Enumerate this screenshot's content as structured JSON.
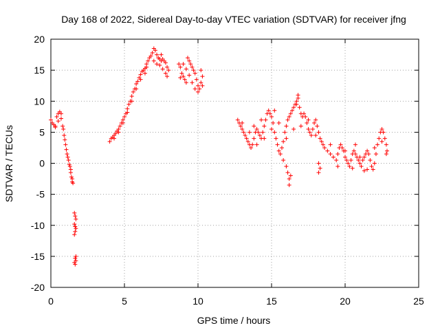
{
  "chart_data": {
    "type": "scatter",
    "title": "Day 168 of 2022, Sidereal Day-to-day VTEC variation (SDTVAR) for receiver jfng",
    "xlabel": "GPS time / hours",
    "ylabel": "SDTVAR / TECUs",
    "xlim": [
      0,
      25
    ],
    "ylim": [
      -20,
      20
    ],
    "x_ticks": [
      0,
      5,
      10,
      15,
      20,
      25
    ],
    "y_ticks": [
      -20,
      -15,
      -10,
      -5,
      0,
      5,
      10,
      15,
      20
    ],
    "x_tick_labels": [
      "0",
      "5",
      "10",
      "15",
      "20",
      "25"
    ],
    "y_tick_labels": [
      "-20",
      "-15",
      "-10",
      "-5",
      "0",
      "5",
      "10",
      "15",
      "20"
    ],
    "grid": true,
    "marker": "+",
    "marker_color": "#ff0000",
    "series": [
      {
        "name": "SDTVAR",
        "points": [
          [
            0.0,
            7.0
          ],
          [
            0.1,
            6.5
          ],
          [
            0.2,
            6.2
          ],
          [
            0.3,
            6.0
          ],
          [
            0.4,
            7.5
          ],
          [
            0.5,
            8.0
          ],
          [
            0.6,
            8.3
          ],
          [
            0.7,
            8.0
          ],
          [
            0.3,
            5.8
          ],
          [
            0.5,
            6.8
          ],
          [
            0.7,
            7.2
          ],
          [
            0.8,
            6.0
          ],
          [
            0.9,
            4.5
          ],
          [
            1.0,
            3.0
          ],
          [
            1.1,
            1.5
          ],
          [
            1.2,
            0.5
          ],
          [
            1.3,
            -0.5
          ],
          [
            1.35,
            -1.5
          ],
          [
            1.4,
            -2.2
          ],
          [
            1.45,
            -3.0
          ],
          [
            1.5,
            -3.2
          ],
          [
            0.85,
            5.5
          ],
          [
            0.95,
            3.8
          ],
          [
            1.05,
            2.2
          ],
          [
            1.15,
            1.0
          ],
          [
            1.25,
            -0.2
          ],
          [
            1.35,
            -1.0
          ],
          [
            1.45,
            -2.5
          ],
          [
            1.6,
            -8.0
          ],
          [
            1.65,
            -8.5
          ],
          [
            1.7,
            -9.0
          ],
          [
            1.6,
            -9.8
          ],
          [
            1.65,
            -10.2
          ],
          [
            1.7,
            -10.5
          ],
          [
            1.65,
            -11.0
          ],
          [
            1.6,
            -11.5
          ],
          [
            1.7,
            -15.0
          ],
          [
            1.65,
            -15.3
          ],
          [
            1.7,
            -15.7
          ],
          [
            1.6,
            -16.0
          ],
          [
            1.65,
            -16.3
          ],
          [
            4.0,
            3.5
          ],
          [
            4.1,
            4.0
          ],
          [
            4.2,
            4.2
          ],
          [
            4.3,
            4.5
          ],
          [
            4.4,
            4.8
          ],
          [
            4.5,
            5.2
          ],
          [
            4.6,
            5.5
          ],
          [
            4.7,
            6.0
          ],
          [
            4.8,
            6.5
          ],
          [
            4.9,
            7.0
          ],
          [
            5.0,
            7.5
          ],
          [
            5.1,
            8.0
          ],
          [
            5.2,
            8.8
          ],
          [
            5.3,
            9.5
          ],
          [
            5.4,
            10.0
          ],
          [
            5.5,
            10.8
          ],
          [
            5.6,
            11.5
          ],
          [
            5.7,
            12.0
          ],
          [
            5.8,
            12.8
          ],
          [
            5.9,
            13.2
          ],
          [
            6.0,
            13.8
          ],
          [
            6.1,
            14.3
          ],
          [
            6.2,
            14.8
          ],
          [
            6.3,
            15.0
          ],
          [
            6.4,
            15.3
          ],
          [
            6.5,
            15.5
          ],
          [
            4.3,
            4.0
          ],
          [
            4.6,
            5.0
          ],
          [
            4.9,
            6.5
          ],
          [
            5.2,
            8.2
          ],
          [
            5.5,
            10.0
          ],
          [
            5.8,
            12.0
          ],
          [
            6.1,
            13.5
          ],
          [
            6.4,
            14.5
          ],
          [
            6.5,
            16.0
          ],
          [
            6.6,
            16.5
          ],
          [
            6.7,
            17.0
          ],
          [
            6.8,
            17.3
          ],
          [
            6.9,
            17.8
          ],
          [
            7.0,
            18.5
          ],
          [
            7.1,
            18.2
          ],
          [
            7.2,
            17.5
          ],
          [
            7.3,
            17.0
          ],
          [
            7.4,
            16.8
          ],
          [
            7.5,
            16.5
          ],
          [
            7.6,
            16.8
          ],
          [
            7.7,
            16.5
          ],
          [
            7.8,
            16.2
          ],
          [
            7.9,
            15.5
          ],
          [
            8.0,
            15.0
          ],
          [
            7.0,
            16.5
          ],
          [
            7.2,
            16.0
          ],
          [
            7.4,
            15.8
          ],
          [
            7.6,
            15.2
          ],
          [
            7.8,
            14.5
          ],
          [
            7.9,
            14.0
          ],
          [
            7.5,
            17.5
          ],
          [
            8.7,
            16.0
          ],
          [
            8.8,
            15.5
          ],
          [
            8.9,
            14.5
          ],
          [
            9.0,
            14.0
          ],
          [
            9.1,
            13.5
          ],
          [
            9.2,
            13.0
          ],
          [
            9.3,
            17.0
          ],
          [
            9.4,
            16.5
          ],
          [
            9.5,
            16.0
          ],
          [
            9.6,
            15.5
          ],
          [
            9.7,
            15.0
          ],
          [
            9.8,
            14.5
          ],
          [
            9.9,
            13.5
          ],
          [
            10.0,
            12.5
          ],
          [
            10.1,
            12.0
          ],
          [
            10.2,
            13.0
          ],
          [
            10.3,
            14.0
          ],
          [
            8.8,
            13.8
          ],
          [
            9.0,
            16.0
          ],
          [
            9.2,
            15.2
          ],
          [
            9.4,
            14.2
          ],
          [
            9.6,
            13.0
          ],
          [
            9.8,
            12.0
          ],
          [
            10.0,
            11.5
          ],
          [
            10.2,
            15.0
          ],
          [
            10.3,
            12.5
          ],
          [
            12.7,
            7.0
          ],
          [
            12.8,
            6.5
          ],
          [
            12.9,
            6.0
          ],
          [
            13.0,
            5.5
          ],
          [
            13.1,
            5.0
          ],
          [
            13.2,
            4.5
          ],
          [
            13.3,
            4.0
          ],
          [
            13.4,
            3.5
          ],
          [
            13.5,
            3.0
          ],
          [
            13.6,
            2.5
          ],
          [
            13.7,
            3.0
          ],
          [
            13.8,
            4.0
          ],
          [
            13.9,
            5.0
          ],
          [
            14.0,
            5.5
          ],
          [
            14.1,
            5.0
          ],
          [
            14.2,
            4.5
          ],
          [
            14.3,
            4.0
          ],
          [
            14.4,
            5.0
          ],
          [
            14.5,
            6.0
          ],
          [
            14.6,
            7.0
          ],
          [
            14.7,
            8.0
          ],
          [
            14.8,
            8.5
          ],
          [
            14.9,
            8.0
          ],
          [
            15.0,
            7.5
          ],
          [
            15.1,
            6.5
          ],
          [
            15.2,
            5.0
          ],
          [
            15.3,
            4.0
          ],
          [
            15.4,
            3.0
          ],
          [
            15.5,
            2.0
          ],
          [
            15.6,
            1.5
          ],
          [
            15.7,
            2.5
          ],
          [
            15.8,
            3.5
          ],
          [
            15.9,
            5.0
          ],
          [
            16.0,
            6.0
          ],
          [
            16.1,
            7.0
          ],
          [
            16.2,
            7.5
          ],
          [
            16.3,
            8.0
          ],
          [
            16.4,
            8.5
          ],
          [
            16.5,
            9.0
          ],
          [
            16.6,
            9.5
          ],
          [
            16.7,
            10.0
          ],
          [
            16.8,
            10.5
          ],
          [
            16.9,
            9.0
          ],
          [
            17.0,
            8.0
          ],
          [
            17.1,
            7.5
          ],
          [
            17.2,
            8.0
          ],
          [
            17.3,
            7.5
          ],
          [
            17.4,
            6.5
          ],
          [
            17.5,
            5.5
          ],
          [
            17.6,
            5.0
          ],
          [
            17.7,
            4.5
          ],
          [
            17.8,
            5.5
          ],
          [
            17.9,
            6.5
          ],
          [
            18.0,
            7.0
          ],
          [
            18.1,
            6.0
          ],
          [
            18.2,
            5.0
          ],
          [
            18.3,
            4.0
          ],
          [
            18.4,
            3.5
          ],
          [
            18.5,
            3.0
          ],
          [
            13.0,
            6.5
          ],
          [
            13.5,
            5.0
          ],
          [
            14.0,
            3.0
          ],
          [
            14.5,
            4.0
          ],
          [
            15.0,
            5.5
          ],
          [
            15.5,
            6.5
          ],
          [
            16.0,
            4.0
          ],
          [
            16.5,
            5.5
          ],
          [
            17.0,
            6.0
          ],
          [
            17.5,
            7.0
          ],
          [
            18.0,
            4.5
          ],
          [
            15.8,
            0.5
          ],
          [
            16.0,
            -0.5
          ],
          [
            16.1,
            -1.5
          ],
          [
            16.2,
            -2.5
          ],
          [
            16.2,
            -3.5
          ],
          [
            16.3,
            -2.0
          ],
          [
            18.2,
            0.0
          ],
          [
            18.3,
            -0.8
          ],
          [
            18.2,
            -1.5
          ],
          [
            16.8,
            11.0
          ],
          [
            16.7,
            9.5
          ],
          [
            15.2,
            8.5
          ],
          [
            14.3,
            7.0
          ],
          [
            13.8,
            6.0
          ],
          [
            18.6,
            2.5
          ],
          [
            18.8,
            2.0
          ],
          [
            19.0,
            1.5
          ],
          [
            19.2,
            1.0
          ],
          [
            19.4,
            0.5
          ],
          [
            19.5,
            1.5
          ],
          [
            19.6,
            2.5
          ],
          [
            19.7,
            3.0
          ],
          [
            19.8,
            2.5
          ],
          [
            19.9,
            2.0
          ],
          [
            20.0,
            1.0
          ],
          [
            20.1,
            0.5
          ],
          [
            20.2,
            0.0
          ],
          [
            20.3,
            -0.5
          ],
          [
            20.4,
            0.5
          ],
          [
            20.5,
            1.5
          ],
          [
            20.6,
            2.0
          ],
          [
            20.7,
            1.5
          ],
          [
            20.8,
            1.0
          ],
          [
            20.9,
            0.5
          ],
          [
            21.0,
            0.0
          ],
          [
            21.1,
            -0.5
          ],
          [
            21.2,
            0.5
          ],
          [
            21.3,
            1.0
          ],
          [
            21.4,
            1.5
          ],
          [
            21.5,
            2.0
          ],
          [
            21.6,
            1.5
          ],
          [
            21.7,
            0.5
          ],
          [
            21.8,
            -0.5
          ],
          [
            21.9,
            -1.0
          ],
          [
            22.0,
            0.0
          ],
          [
            22.1,
            1.5
          ],
          [
            22.2,
            3.0
          ],
          [
            22.3,
            4.0
          ],
          [
            22.4,
            5.0
          ],
          [
            22.5,
            5.5
          ],
          [
            22.6,
            5.0
          ],
          [
            22.7,
            4.0
          ],
          [
            22.8,
            3.0
          ],
          [
            22.85,
            2.0
          ],
          [
            19.0,
            3.0
          ],
          [
            19.5,
            -0.5
          ],
          [
            20.0,
            2.0
          ],
          [
            20.5,
            -0.8
          ],
          [
            21.0,
            1.0
          ],
          [
            21.5,
            -1.0
          ],
          [
            22.0,
            2.5
          ],
          [
            22.5,
            3.5
          ],
          [
            22.8,
            1.5
          ],
          [
            20.7,
            3.0
          ],
          [
            21.3,
            -1.2
          ]
        ]
      }
    ]
  }
}
